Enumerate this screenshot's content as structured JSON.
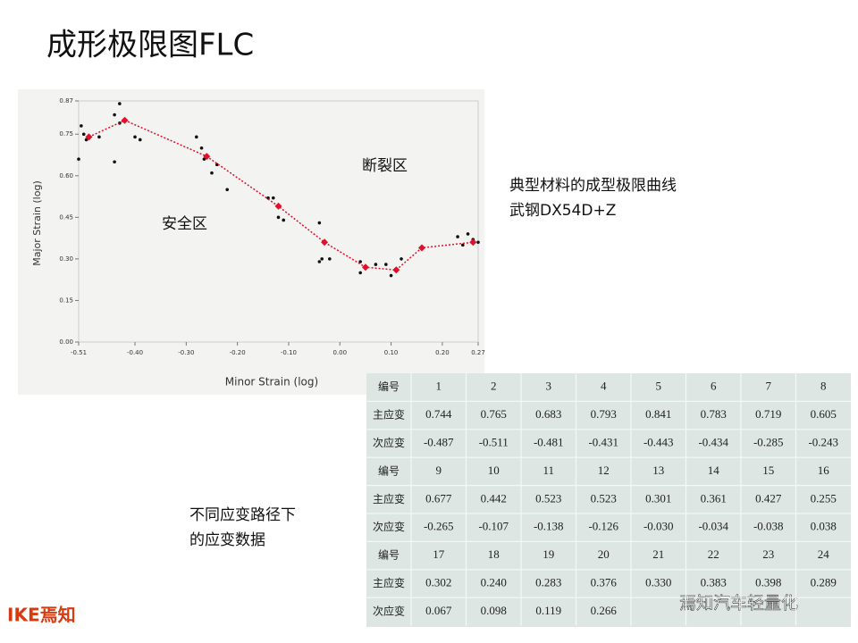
{
  "title": "成形极限图FLC",
  "note_material": [
    "典型材料的成型极限曲线",
    "武钢DX54D+Z"
  ],
  "note_table": [
    "不同应变路径下",
    "的应变数据"
  ],
  "logo": "IKE焉知",
  "watermark": "焉知汽车轻量化",
  "chart_data": {
    "type": "line",
    "xlabel": "Minor Strain (log)",
    "ylabel": "Major Strain (log)",
    "annotations": [
      "断裂区",
      "安全区"
    ],
    "xlim": [
      -0.51,
      0.27
    ],
    "xticks": [
      {
        "value": -0.51,
        "label": "-0.51"
      },
      {
        "value": -0.4,
        "label": "-0.40"
      },
      {
        "value": -0.3,
        "label": "-0.30"
      },
      {
        "value": -0.2,
        "label": "-0.20"
      },
      {
        "value": -0.1,
        "label": "-0.10"
      },
      {
        "value": 0,
        "label": "0.00"
      },
      {
        "value": 0.1,
        "label": "0.10"
      },
      {
        "value": 0.2,
        "label": "0.20"
      },
      0.27
    ],
    "ylim": [
      0,
      0.87
    ],
    "yticks": [
      {
        "value": 0,
        "label": "0.00"
      },
      0.15,
      {
        "value": 0.3,
        "label": "0.30"
      },
      0.45,
      {
        "value": 0.6,
        "label": "0.60"
      },
      0.75,
      0.87
    ],
    "series": [
      {
        "type": "scatter",
        "color": "#111111",
        "x": [
          -0.51,
          -0.505,
          -0.5,
          -0.495,
          -0.47,
          -0.44,
          -0.44,
          -0.43,
          -0.43,
          -0.4,
          -0.39,
          -0.28,
          -0.27,
          -0.265,
          -0.25,
          -0.24,
          -0.22,
          -0.14,
          -0.13,
          -0.11,
          -0.12,
          -0.04,
          -0.035,
          -0.04,
          -0.02,
          0.04,
          0.04,
          0.07,
          0.09,
          0.1,
          0.12,
          0.23,
          0.25,
          0.26,
          0.27,
          0.24
        ],
        "values": [
          0.66,
          0.78,
          0.75,
          0.73,
          0.74,
          0.65,
          0.82,
          0.79,
          0.86,
          0.74,
          0.73,
          0.74,
          0.7,
          0.66,
          0.61,
          0.64,
          0.55,
          0.52,
          0.52,
          0.44,
          0.45,
          0.43,
          0.3,
          0.29,
          0.3,
          0.29,
          0.25,
          0.28,
          0.28,
          0.24,
          0.3,
          0.38,
          0.39,
          0.37,
          0.36,
          0.35
        ]
      },
      {
        "type": "line",
        "color": "#e0102a",
        "x": [
          -0.49,
          -0.42,
          -0.26,
          -0.12,
          -0.03,
          0.05,
          0.11,
          0.16,
          0.26
        ],
        "values": [
          0.74,
          0.8,
          0.67,
          0.49,
          0.36,
          0.27,
          0.26,
          0.34,
          0.36
        ]
      }
    ]
  },
  "table": {
    "rows": [
      [
        "编号",
        "1",
        "2",
        "3",
        "4",
        "5",
        "6",
        "7",
        "8"
      ],
      [
        "主应变",
        "0.744",
        "0.765",
        "0.683",
        "0.793",
        "0.841",
        "0.783",
        "0.719",
        "0.605"
      ],
      [
        "次应变",
        "-0.487",
        "-0.511",
        "-0.481",
        "-0.431",
        "-0.443",
        "-0.434",
        "-0.285",
        "-0.243"
      ],
      [
        "编号",
        "9",
        "10",
        "11",
        "12",
        "13",
        "14",
        "15",
        "16"
      ],
      [
        "主应变",
        "0.677",
        "0.442",
        "0.523",
        "0.523",
        "0.301",
        "0.361",
        "0.427",
        "0.255"
      ],
      [
        "次应变",
        "-0.265",
        "-0.107",
        "-0.138",
        "-0.126",
        "-0.030",
        "-0.034",
        "-0.038",
        "0.038"
      ],
      [
        "编号",
        "17",
        "18",
        "19",
        "20",
        "21",
        "22",
        "23",
        "24"
      ],
      [
        "主应变",
        "0.302",
        "0.240",
        "0.283",
        "0.376",
        "0.330",
        "0.383",
        "0.398",
        "0.289"
      ],
      [
        "次应变",
        "0.067",
        "0.098",
        "0.119",
        "0.266",
        null,
        null,
        null,
        null
      ]
    ]
  }
}
